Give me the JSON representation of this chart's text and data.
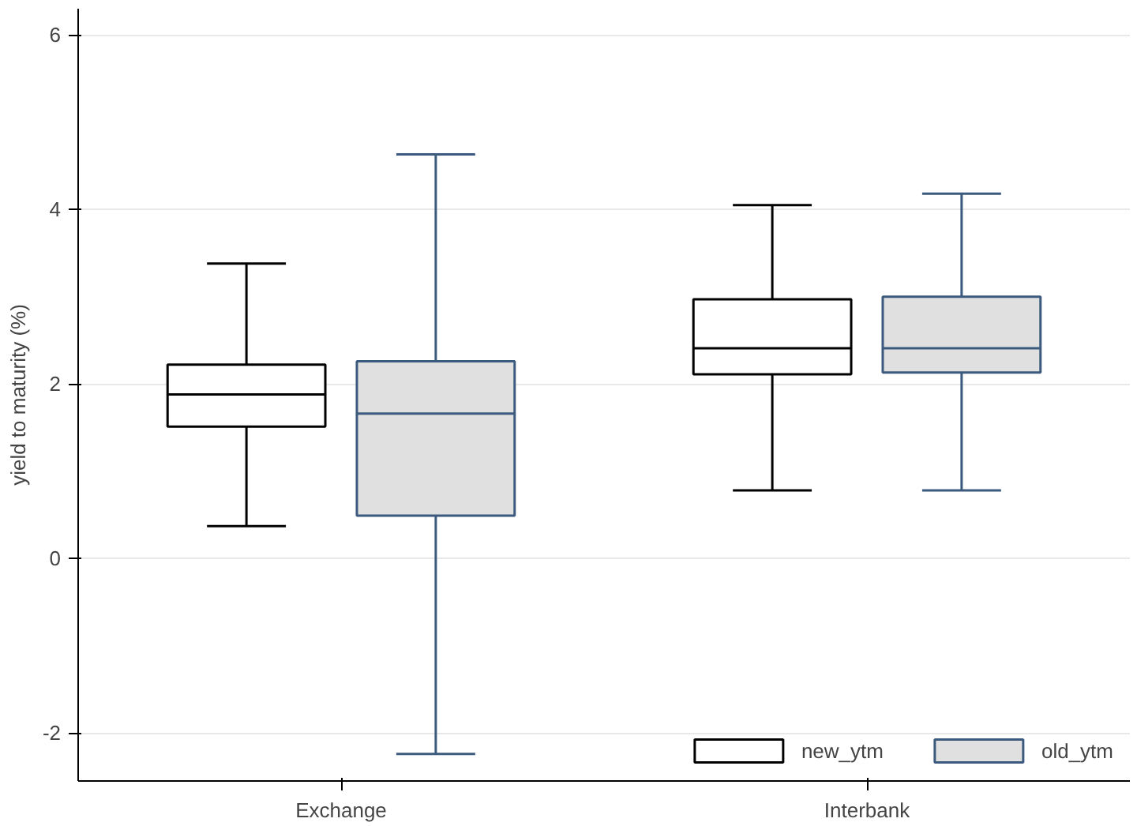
{
  "chart_data": {
    "type": "box",
    "ylabel": "yield to maturity (%)",
    "categories": [
      "Exchange",
      "Interbank"
    ],
    "ylim": [
      -2.55,
      6.3
    ],
    "yticks": [
      -2,
      0,
      2,
      4,
      6
    ],
    "grid": "y",
    "legend": "bottom right",
    "series": [
      {
        "name": "new_ytm",
        "color": "#000000",
        "boxes": [
          {
            "low": 0.37,
            "q1": 1.51,
            "median": 1.88,
            "q3": 2.22,
            "high": 3.38
          },
          {
            "low": 0.78,
            "q1": 2.11,
            "median": 2.41,
            "q3": 2.97,
            "high": 4.05
          }
        ]
      },
      {
        "name": "old_ytm",
        "color": "#3b5a7e",
        "boxes": [
          {
            "low": -2.24,
            "q1": 0.49,
            "median": 1.66,
            "q3": 2.26,
            "high": 4.63
          },
          {
            "low": 0.78,
            "q1": 2.13,
            "median": 2.41,
            "q3": 3.0,
            "high": 4.18
          }
        ]
      }
    ]
  }
}
